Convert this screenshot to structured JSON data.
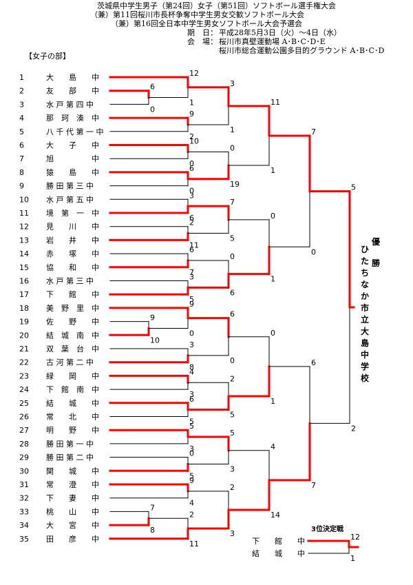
{
  "header": {
    "title_lines": [
      "茨城県中学生男子（第24回）女子（第51回）ソフトボール選手権大会",
      "（兼）第11回桜川市長杯争奪中学生男女交歓ソフトボール大会",
      "（兼）第16回全日本中学生男女ソフトボール大会予選会"
    ],
    "period_label": "期　日：",
    "period_value": "平成28年5月3日（火）～4日（水）",
    "venue_label": "会　場：",
    "venue_lines": [
      "桜川市真壁運動場 A･B･C･D･E",
      "桜川市総合運動公園多目的グラウンド A･B･C･D"
    ]
  },
  "division": "【女子の部】",
  "colors": {
    "win": "#ff0000",
    "lose": "#000000"
  },
  "teams": [
    {
      "no": "1",
      "name": "大　　島　　中"
    },
    {
      "no": "2",
      "name": "友　　部　　中"
    },
    {
      "no": "3",
      "name": "水 戸 第 四 中"
    },
    {
      "no": "4",
      "name": "那　珂　湊　中"
    },
    {
      "no": "5",
      "name": "八 千 代 第 一 中"
    },
    {
      "no": "6",
      "name": "大　　子　　中"
    },
    {
      "no": "7",
      "name": "旭　　　　　中"
    },
    {
      "no": "8",
      "name": "猿　　島　　中"
    },
    {
      "no": "9",
      "name": "勝 田 第 三 中"
    },
    {
      "no": "10",
      "name": "水 戸 第 五 中"
    },
    {
      "no": "11",
      "name": "境　第　一　中"
    },
    {
      "no": "12",
      "name": "見　　川　　中"
    },
    {
      "no": "13",
      "name": "岩　　井　　中"
    },
    {
      "no": "14",
      "name": "赤　　塚　　中"
    },
    {
      "no": "15",
      "name": "協　　和　　中"
    },
    {
      "no": "16",
      "name": "水 戸 第 三 中"
    },
    {
      "no": "17",
      "name": "下　　館　　中"
    },
    {
      "no": "18",
      "name": "美　野　里　中"
    },
    {
      "no": "19",
      "name": "佐　　野　　中"
    },
    {
      "no": "20",
      "name": "結　城　南　中"
    },
    {
      "no": "21",
      "name": "双　葉　台　中"
    },
    {
      "no": "22",
      "name": "古 河 第 二 中"
    },
    {
      "no": "23",
      "name": "緑　　岡　　中"
    },
    {
      "no": "24",
      "name": "下　館　南　中"
    },
    {
      "no": "25",
      "name": "結　　城　　中"
    },
    {
      "no": "26",
      "name": "常　　北　　中"
    },
    {
      "no": "27",
      "name": "明　　野　　中"
    },
    {
      "no": "28",
      "name": "勝 田 第 一 中"
    },
    {
      "no": "29",
      "name": "勝 田 第 二 中"
    },
    {
      "no": "30",
      "name": "関　　城　　中"
    },
    {
      "no": "31",
      "name": "常　　澄　　中"
    },
    {
      "no": "32",
      "name": "下　　妻　　中"
    },
    {
      "no": "33",
      "name": "桃　　山　　中"
    },
    {
      "no": "34",
      "name": "大　　宮　　中"
    },
    {
      "no": "35",
      "name": "田　　彦　　中"
    }
  ],
  "champion_label": "優　勝",
  "champion_name": "ひたちなか市立大島中学校",
  "third_place": {
    "title": "3位決定戦",
    "teams": [
      "下　　館　　中",
      "結　　城　　中"
    ],
    "scores": [
      "12",
      "1"
    ]
  }
}
